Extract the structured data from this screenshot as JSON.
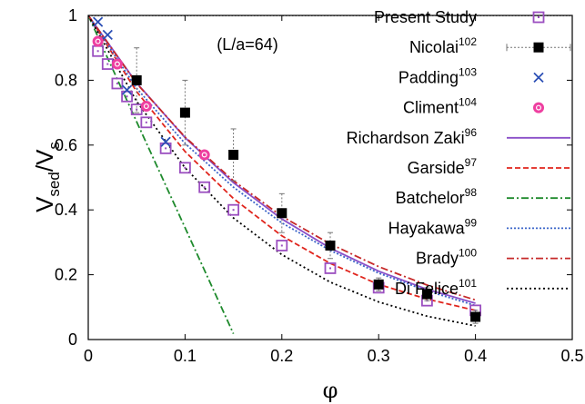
{
  "chart_data": {
    "type": "line",
    "xlabel": "φ",
    "ylabel_main": "V",
    "ylabel_sub1": "sed",
    "ylabel_mid": "/V",
    "ylabel_sub2": "s",
    "annotation": "(L/a=64)",
    "xlim": [
      0,
      0.5
    ],
    "ylim": [
      0,
      1
    ],
    "xticks": [
      0,
      0.1,
      0.2,
      0.3,
      0.4,
      0.5
    ],
    "xtick_labels": [
      "0",
      "0.1",
      "0.2",
      "0.3",
      "0.4",
      "0.5"
    ],
    "yticks": [
      0,
      0.2,
      0.4,
      0.6,
      0.8,
      1
    ],
    "ytick_labels": [
      "0",
      "0.2",
      "0.4",
      "0.6",
      "0.8",
      "1"
    ],
    "grid": false,
    "legend_position": "top-right",
    "reference_line_y": 1,
    "series": [
      {
        "name": "Present Study",
        "ref": "",
        "kind": "markers",
        "marker": "square-open",
        "color": "#9b4fc0",
        "points": [
          [
            0.01,
            0.89
          ],
          [
            0.02,
            0.85
          ],
          [
            0.03,
            0.79
          ],
          [
            0.04,
            0.75
          ],
          [
            0.05,
            0.71
          ],
          [
            0.06,
            0.67
          ],
          [
            0.08,
            0.59
          ],
          [
            0.1,
            0.53
          ],
          [
            0.12,
            0.47
          ],
          [
            0.15,
            0.4
          ],
          [
            0.2,
            0.29
          ],
          [
            0.25,
            0.22
          ],
          [
            0.3,
            0.16
          ],
          [
            0.35,
            0.12
          ],
          [
            0.4,
            0.09
          ]
        ]
      },
      {
        "name": "Nicolai",
        "ref": "102",
        "kind": "markers",
        "marker": "square-filled",
        "color": "#000000",
        "errorbars": true,
        "points": [
          [
            0.05,
            0.8,
            0.9,
            0.7
          ],
          [
            0.1,
            0.7,
            0.8,
            0.6
          ],
          [
            0.15,
            0.57,
            0.65,
            0.49
          ],
          [
            0.2,
            0.39,
            0.45,
            0.33
          ],
          [
            0.25,
            0.29,
            0.33,
            0.25
          ],
          [
            0.3,
            0.17,
            0.19,
            0.15
          ],
          [
            0.35,
            0.14,
            0.16,
            0.12
          ],
          [
            0.4,
            0.07,
            0.09,
            0.05
          ]
        ]
      },
      {
        "name": "Padding",
        "ref": "103",
        "kind": "markers",
        "marker": "x",
        "color": "#2b4fb5",
        "points": [
          [
            0.01,
            0.98
          ],
          [
            0.02,
            0.94
          ],
          [
            0.04,
            0.77
          ],
          [
            0.08,
            0.61
          ]
        ]
      },
      {
        "name": "Climent",
        "ref": "104",
        "kind": "markers",
        "marker": "circle",
        "color": "#ee3fa0",
        "points": [
          [
            0.01,
            0.92
          ],
          [
            0.03,
            0.85
          ],
          [
            0.06,
            0.72
          ],
          [
            0.12,
            0.57
          ]
        ]
      },
      {
        "name": "Richardson  Zaki",
        "ref": "96",
        "kind": "line",
        "color": "#8a4fc8",
        "dash": "",
        "points": [
          [
            0.0,
            1.0
          ],
          [
            0.05,
            0.792
          ],
          [
            0.1,
            0.623
          ],
          [
            0.15,
            0.484
          ],
          [
            0.2,
            0.372
          ],
          [
            0.25,
            0.282
          ],
          [
            0.3,
            0.211
          ],
          [
            0.35,
            0.155
          ],
          [
            0.4,
            0.112
          ]
        ]
      },
      {
        "name": "Garside",
        "ref": "97",
        "kind": "line",
        "color": "#e0251d",
        "dash": "6,3",
        "points": [
          [
            0.0,
            1.0
          ],
          [
            0.05,
            0.765
          ],
          [
            0.1,
            0.58
          ],
          [
            0.15,
            0.435
          ],
          [
            0.2,
            0.32
          ],
          [
            0.25,
            0.235
          ],
          [
            0.3,
            0.17
          ],
          [
            0.35,
            0.125
          ],
          [
            0.4,
            0.09
          ]
        ]
      },
      {
        "name": "Batchelor",
        "ref": "98",
        "kind": "line",
        "color": "#1e8a2c",
        "dash": "8,3,2,3",
        "points": [
          [
            0.0,
            1.0
          ],
          [
            0.05,
            0.672
          ],
          [
            0.1,
            0.345
          ],
          [
            0.15,
            0.018
          ]
        ]
      },
      {
        "name": "Hayakawa",
        "ref": "99",
        "kind": "line",
        "color": "#3a64c8",
        "dash": "2,2",
        "points": [
          [
            0.0,
            1.0
          ],
          [
            0.05,
            0.775
          ],
          [
            0.1,
            0.605
          ],
          [
            0.15,
            0.47
          ],
          [
            0.2,
            0.36
          ],
          [
            0.25,
            0.275
          ],
          [
            0.3,
            0.205
          ],
          [
            0.35,
            0.15
          ],
          [
            0.4,
            0.105
          ]
        ]
      },
      {
        "name": "Brady",
        "ref": "100",
        "kind": "line",
        "color": "#c62828",
        "dash": "8,3,2,3",
        "points": [
          [
            0.0,
            1.0
          ],
          [
            0.05,
            0.79
          ],
          [
            0.1,
            0.625
          ],
          [
            0.15,
            0.49
          ],
          [
            0.2,
            0.38
          ],
          [
            0.25,
            0.295
          ],
          [
            0.3,
            0.225
          ],
          [
            0.35,
            0.168
          ],
          [
            0.4,
            0.122
          ]
        ]
      },
      {
        "name": "Di Felice",
        "ref": "101",
        "kind": "line",
        "color": "#000000",
        "dash": "2,3",
        "points": [
          [
            0.0,
            1.0
          ],
          [
            0.05,
            0.735
          ],
          [
            0.1,
            0.53
          ],
          [
            0.15,
            0.375
          ],
          [
            0.2,
            0.262
          ],
          [
            0.25,
            0.177
          ],
          [
            0.3,
            0.116
          ],
          [
            0.35,
            0.072
          ],
          [
            0.4,
            0.042
          ]
        ]
      }
    ]
  }
}
